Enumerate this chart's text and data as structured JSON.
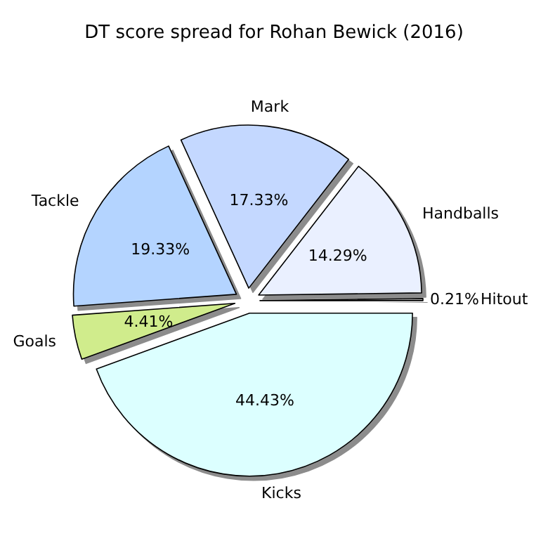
{
  "chart_data": {
    "type": "pie",
    "title": "DT score spread for Rohan Bewick (2016)",
    "categories": [
      "Hitout",
      "Handballs",
      "Mark",
      "Tackle",
      "Goals",
      "Kicks"
    ],
    "values": [
      0.21,
      14.29,
      17.33,
      19.33,
      4.41,
      44.43
    ],
    "value_labels": [
      "0.21%",
      "14.29%",
      "17.33%",
      "19.33%",
      "4.41%",
      "44.43%"
    ],
    "colors": [
      "#a0a0a0",
      "#eaf0ff",
      "#c4d8ff",
      "#b4d4ff",
      "#d0ec8c",
      "#dcffff"
    ],
    "legend": false
  }
}
